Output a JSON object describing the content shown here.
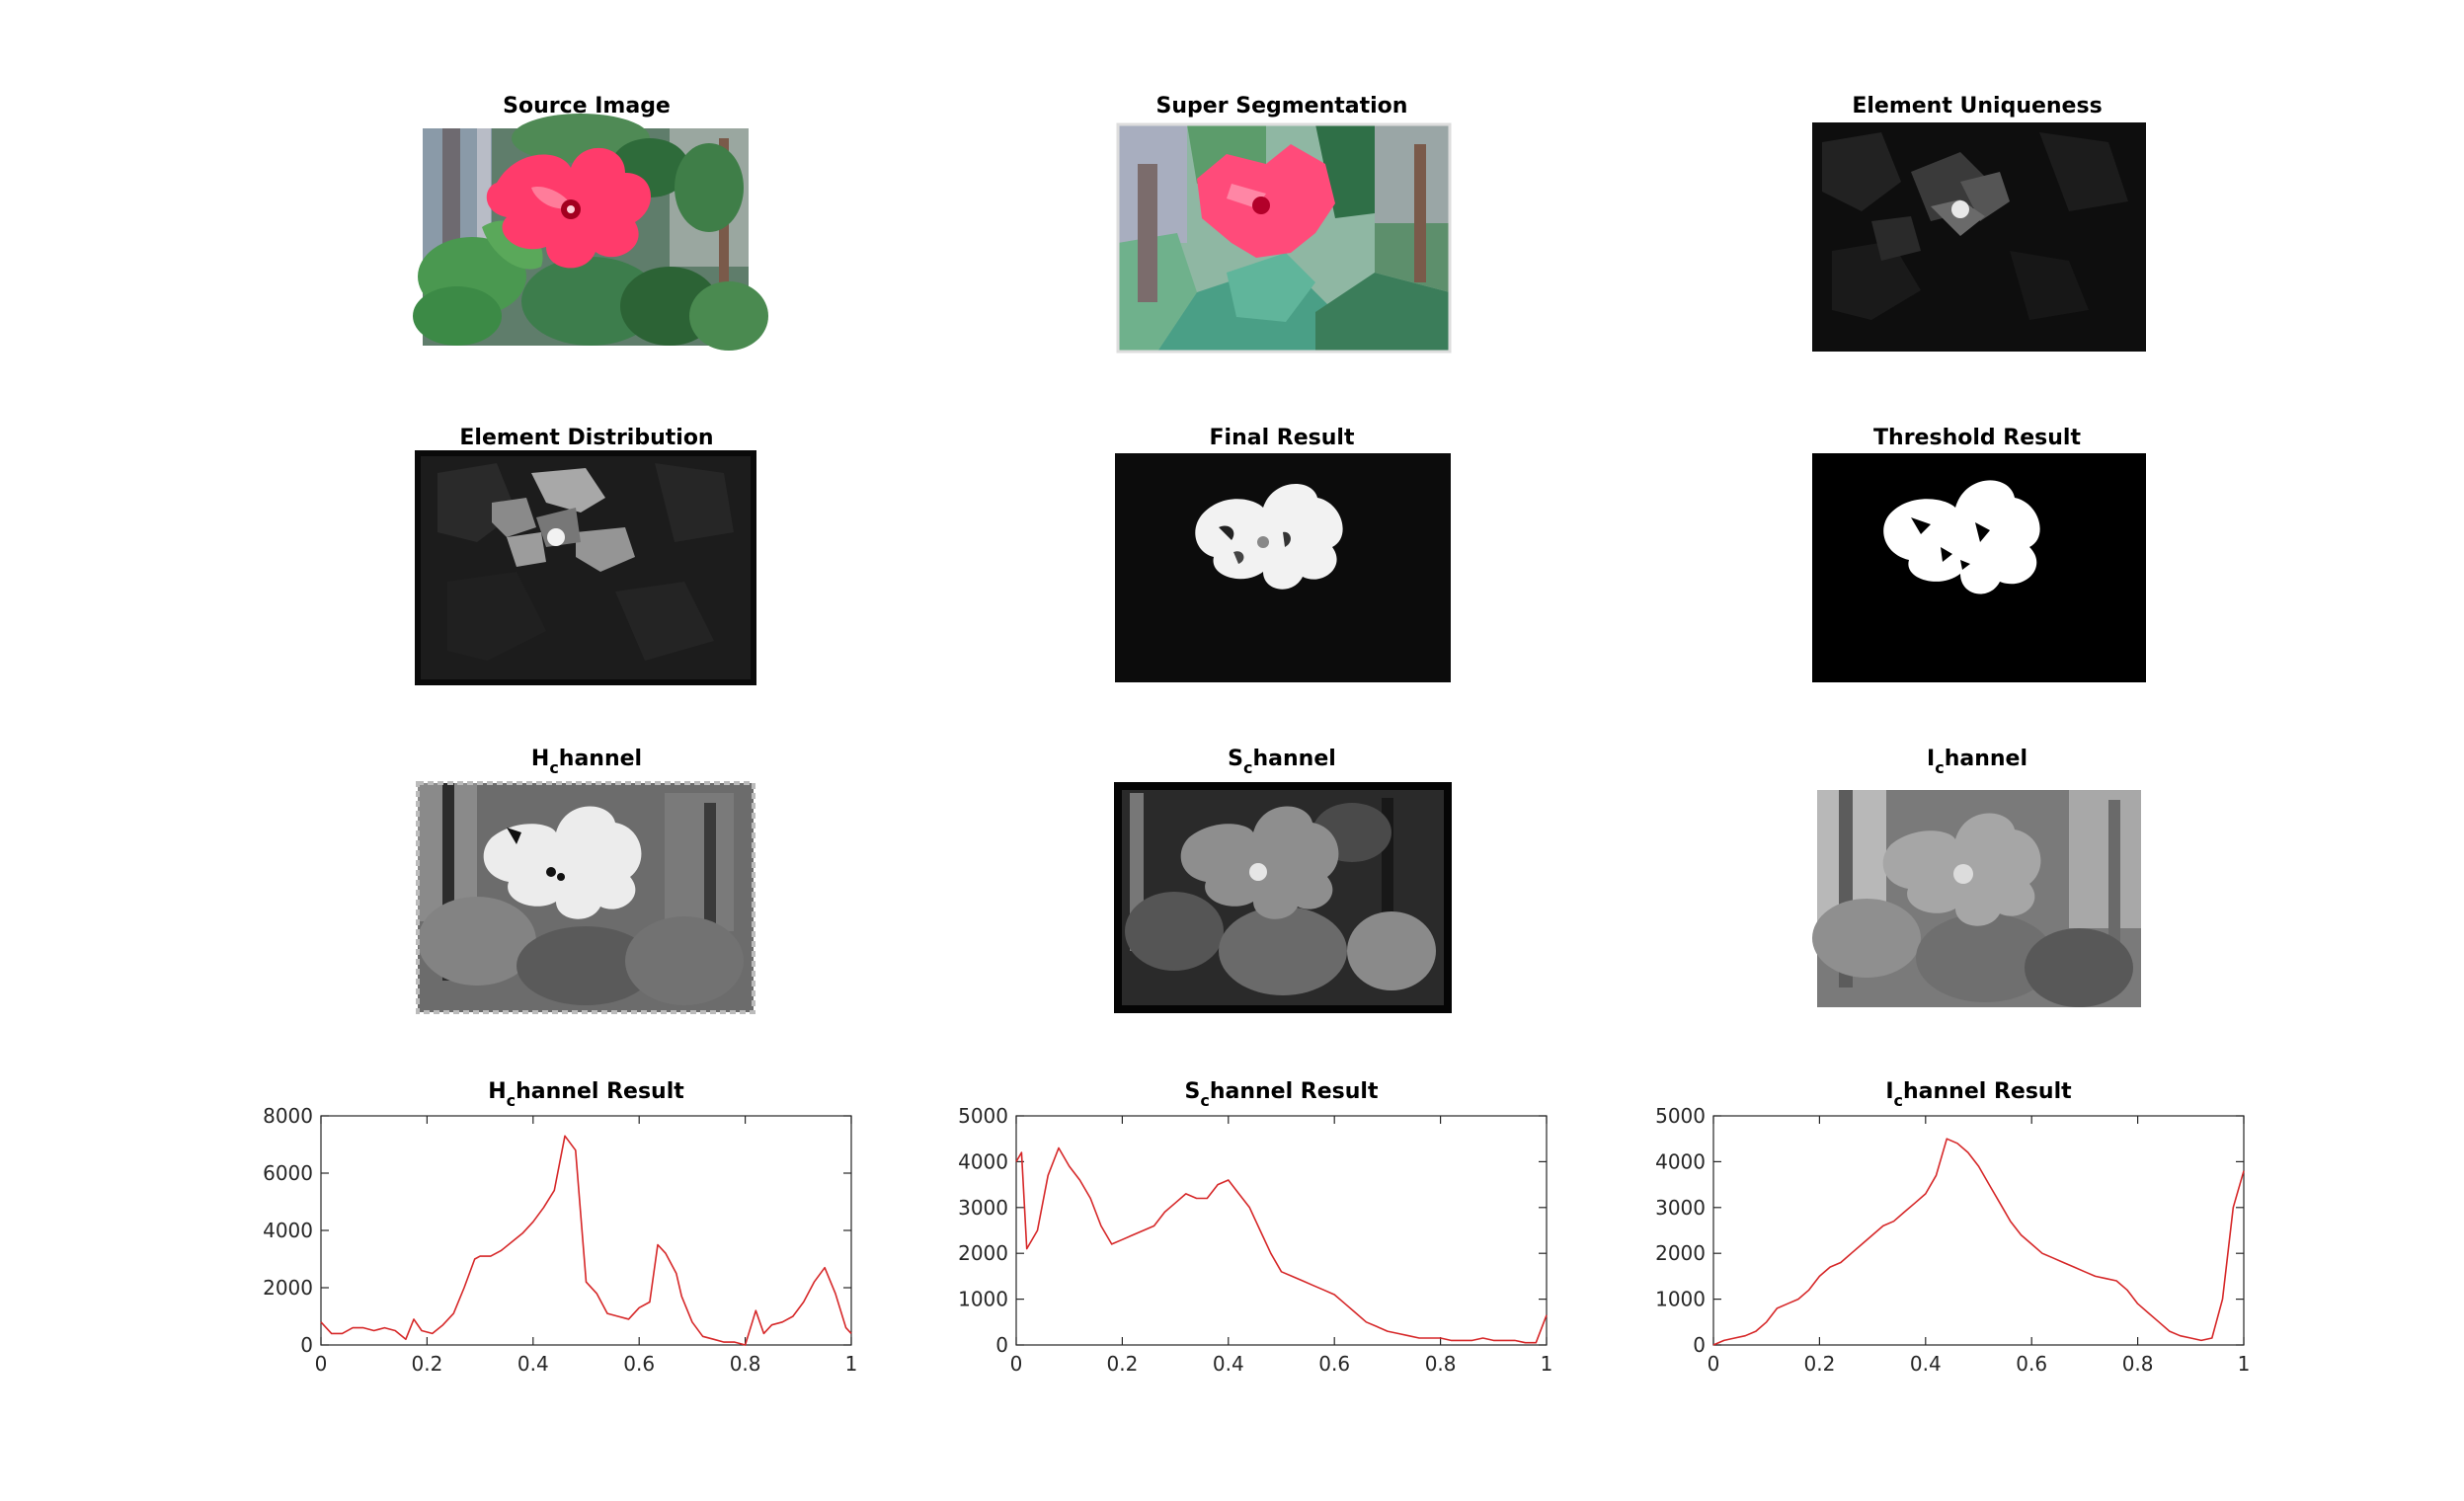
{
  "figure": {
    "panels": [
      {
        "title": "Source Image",
        "kind": "color"
      },
      {
        "title": "Super Segmentation",
        "kind": "segmented"
      },
      {
        "title": "Element Uniqueness",
        "kind": "uniqueness"
      },
      {
        "title": "Element Distribution",
        "kind": "distribution"
      },
      {
        "title": "Final Result",
        "kind": "final"
      },
      {
        "title": "Threshold Result",
        "kind": "threshold"
      },
      {
        "title_main": "H",
        "title_sub": "c",
        "title_rest": "hannel",
        "kind": "hchannel"
      },
      {
        "title_main": "S",
        "title_sub": "c",
        "title_rest": "hannel",
        "kind": "schannel"
      },
      {
        "title_main": "I",
        "title_sub": "c",
        "title_rest": "hannel",
        "kind": "ichannel"
      }
    ],
    "colors": {
      "line": "#d62728",
      "axis": "#262626",
      "petal": "#ff3b6b",
      "leaf": "#3c7a4a"
    }
  },
  "chart_data": [
    {
      "type": "line",
      "title_main": "H",
      "title_sub": "c",
      "title_rest": "hannel Result",
      "xlim": [
        0,
        1
      ],
      "ylim": [
        0,
        8000
      ],
      "xticks": [
        "0",
        "0.2",
        "0.4",
        "0.6",
        "0.8",
        "1"
      ],
      "yticks": [
        "0",
        "2000",
        "4000",
        "6000",
        "8000"
      ],
      "x": [
        0,
        0.02,
        0.04,
        0.06,
        0.08,
        0.1,
        0.12,
        0.14,
        0.16,
        0.175,
        0.19,
        0.21,
        0.23,
        0.25,
        0.27,
        0.29,
        0.3,
        0.32,
        0.34,
        0.36,
        0.38,
        0.4,
        0.42,
        0.44,
        0.46,
        0.48,
        0.5,
        0.52,
        0.54,
        0.56,
        0.58,
        0.6,
        0.62,
        0.635,
        0.65,
        0.67,
        0.68,
        0.7,
        0.72,
        0.74,
        0.76,
        0.78,
        0.8,
        0.82,
        0.835,
        0.85,
        0.87,
        0.89,
        0.91,
        0.93,
        0.95,
        0.97,
        0.99,
        1
      ],
      "y": [
        800,
        400,
        400,
        600,
        600,
        500,
        600,
        500,
        200,
        900,
        500,
        400,
        700,
        1100,
        2000,
        3000,
        3100,
        3100,
        3300,
        3600,
        3900,
        4300,
        4800,
        5400,
        7300,
        6800,
        2200,
        1800,
        1100,
        1000,
        900,
        1300,
        1500,
        3500,
        3200,
        2500,
        1700,
        800,
        300,
        200,
        100,
        100,
        0,
        1200,
        400,
        700,
        800,
        1000,
        1500,
        2200,
        2700,
        1800,
        600,
        400
      ]
    },
    {
      "type": "line",
      "title_main": "S",
      "title_sub": "c",
      "title_rest": "hannel Result",
      "xlim": [
        0,
        1
      ],
      "ylim": [
        0,
        5000
      ],
      "xticks": [
        "0",
        "0.2",
        "0.4",
        "0.6",
        "0.8",
        "1"
      ],
      "yticks": [
        "0",
        "1000",
        "2000",
        "3000",
        "4000",
        "5000"
      ],
      "x": [
        0,
        0.01,
        0.02,
        0.04,
        0.06,
        0.08,
        0.1,
        0.12,
        0.14,
        0.16,
        0.17,
        0.18,
        0.2,
        0.22,
        0.24,
        0.26,
        0.28,
        0.3,
        0.32,
        0.34,
        0.36,
        0.38,
        0.4,
        0.42,
        0.44,
        0.46,
        0.48,
        0.5,
        0.52,
        0.54,
        0.56,
        0.58,
        0.6,
        0.62,
        0.64,
        0.66,
        0.68,
        0.7,
        0.72,
        0.74,
        0.76,
        0.78,
        0.8,
        0.82,
        0.84,
        0.86,
        0.88,
        0.9,
        0.92,
        0.94,
        0.96,
        0.98,
        1
      ],
      "y": [
        4000,
        4200,
        2100,
        2500,
        3700,
        4300,
        3900,
        3600,
        3200,
        2600,
        2400,
        2200,
        2300,
        2400,
        2500,
        2600,
        2900,
        3100,
        3300,
        3200,
        3200,
        3500,
        3600,
        3300,
        3000,
        2500,
        2000,
        1600,
        1500,
        1400,
        1300,
        1200,
        1100,
        900,
        700,
        500,
        400,
        300,
        250,
        200,
        150,
        150,
        150,
        100,
        100,
        100,
        150,
        100,
        100,
        100,
        50,
        50,
        650
      ]
    },
    {
      "type": "line",
      "title_main": "I",
      "title_sub": "c",
      "title_rest": "hannel Result",
      "xlim": [
        0,
        1
      ],
      "ylim": [
        0,
        5000
      ],
      "xticks": [
        "0",
        "0.2",
        "0.4",
        "0.6",
        "0.8",
        "1"
      ],
      "yticks": [
        "0",
        "1000",
        "2000",
        "3000",
        "4000",
        "5000"
      ],
      "x": [
        0,
        0.02,
        0.04,
        0.06,
        0.08,
        0.1,
        0.12,
        0.14,
        0.16,
        0.18,
        0.2,
        0.22,
        0.24,
        0.26,
        0.28,
        0.3,
        0.32,
        0.34,
        0.36,
        0.38,
        0.4,
        0.42,
        0.44,
        0.46,
        0.48,
        0.5,
        0.52,
        0.54,
        0.56,
        0.58,
        0.6,
        0.62,
        0.64,
        0.66,
        0.68,
        0.7,
        0.72,
        0.74,
        0.76,
        0.78,
        0.8,
        0.82,
        0.84,
        0.86,
        0.88,
        0.9,
        0.92,
        0.94,
        0.96,
        0.98,
        1
      ],
      "y": [
        0,
        100,
        150,
        200,
        300,
        500,
        800,
        900,
        1000,
        1200,
        1500,
        1700,
        1800,
        2000,
        2200,
        2400,
        2600,
        2700,
        2900,
        3100,
        3300,
        3700,
        4500,
        4400,
        4200,
        3900,
        3500,
        3100,
        2700,
        2400,
        2200,
        2000,
        1900,
        1800,
        1700,
        1600,
        1500,
        1450,
        1400,
        1200,
        900,
        700,
        500,
        300,
        200,
        150,
        100,
        150,
        1000,
        3000,
        3800
      ]
    }
  ]
}
